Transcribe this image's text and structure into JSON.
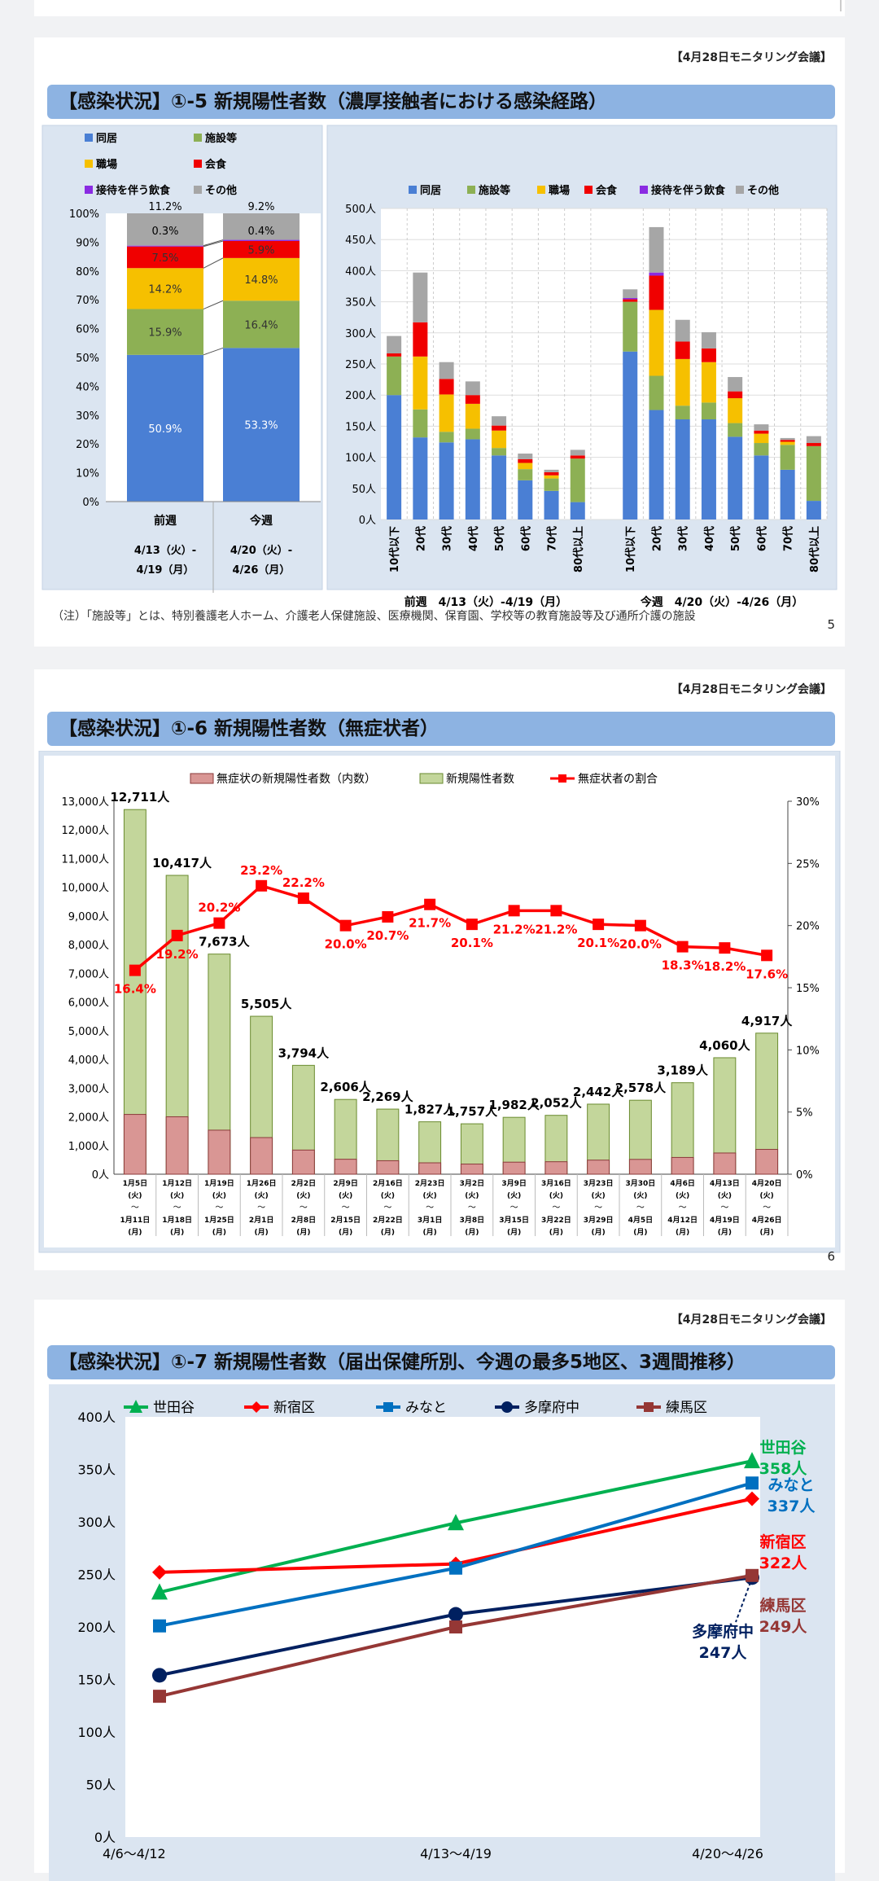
{
  "meeting_label": "【4月28日モニタリング会議】",
  "slide5": {
    "title": "【感染状況】①-5 新規陽性者数（濃厚接触者における感染経路）",
    "page": "5",
    "note": "（注）「施設等」とは、特別養護老人ホーム、介護老人保健施設、医療機関、保育園、学校等の教育施設等及び通所介護の施設",
    "colors": {
      "home": "#4a7fd4",
      "facility": "#8db054",
      "work": "#f6c000",
      "dining": "#f00000",
      "hosted": "#8a2be2",
      "other": "#a6a6a6"
    },
    "legend": [
      "同居",
      "施設等",
      "職場",
      "会食",
      "接待を伴う飲食",
      "その他"
    ],
    "chart_data": [
      {
        "type": "bar",
        "stacked": "percent",
        "categories": [
          "前週",
          "今週"
        ],
        "period_labels": [
          [
            "4/13（火）-",
            "4/19（月）"
          ],
          [
            "4/20（火）-",
            "4/26（月）"
          ]
        ],
        "ylim": [
          0,
          100
        ],
        "yticks": [
          "0%",
          "10%",
          "20%",
          "30%",
          "40%",
          "50%",
          "60%",
          "70%",
          "80%",
          "90%",
          "100%"
        ],
        "series": [
          {
            "name": "同居",
            "key": "home",
            "values": [
              50.9,
              53.3
            ],
            "labels": [
              "50.9%",
              "53.3%"
            ]
          },
          {
            "name": "施設等",
            "key": "facility",
            "values": [
              15.9,
              16.4
            ],
            "labels": [
              "15.9%",
              "16.4%"
            ]
          },
          {
            "name": "職場",
            "key": "work",
            "values": [
              14.2,
              14.8
            ],
            "labels": [
              "14.2%",
              "14.8%"
            ]
          },
          {
            "name": "会食",
            "key": "dining",
            "values": [
              7.5,
              5.9
            ],
            "labels": [
              "7.5%",
              "5.9%"
            ]
          },
          {
            "name": "接待を伴う飲食",
            "key": "hosted",
            "values": [
              0.3,
              0.4
            ],
            "labels": [
              "0.3%",
              "0.4%"
            ]
          },
          {
            "name": "その他",
            "key": "other",
            "values": [
              11.2,
              9.2
            ],
            "labels": [
              "11.2%",
              "9.2%"
            ]
          }
        ]
      },
      {
        "type": "bar",
        "stacked": "absolute",
        "ylim": [
          0,
          500
        ],
        "yticks": [
          "0人",
          "50人",
          "100人",
          "150人",
          "200人",
          "250人",
          "300人",
          "350人",
          "400人",
          "450人",
          "500人"
        ],
        "groups": [
          {
            "label": "前週　4/13（火）-4/19（月）",
            "categories": [
              "10代以下",
              "20代",
              "30代",
              "40代",
              "50代",
              "60代",
              "70代",
              "80代以上"
            ],
            "stacks": [
              [
                200,
                62,
                0,
                5,
                0,
                28
              ],
              [
                132,
                45,
                85,
                55,
                0,
                80
              ],
              [
                124,
                17,
                60,
                25,
                0,
                27
              ],
              [
                129,
                17,
                40,
                14,
                0,
                22
              ],
              [
                103,
                12,
                28,
                8,
                0,
                15
              ],
              [
                63,
                18,
                10,
                6,
                0,
                9
              ],
              [
                46,
                20,
                5,
                5,
                0,
                4
              ],
              [
                28,
                70,
                0,
                5,
                0,
                9
              ]
            ]
          },
          {
            "label": "今週　4/20（火）-4/26（月）",
            "categories": [
              "10代以下",
              "20代",
              "30代",
              "40代",
              "50代",
              "60代",
              "70代",
              "80代以上"
            ],
            "stacks": [
              [
                270,
                80,
                0,
                4,
                2,
                14
              ],
              [
                176,
                55,
                106,
                55,
                5,
                73
              ],
              [
                161,
                22,
                75,
                28,
                0,
                35
              ],
              [
                161,
                27,
                65,
                22,
                0,
                26
              ],
              [
                133,
                22,
                40,
                11,
                0,
                23
              ],
              [
                103,
                20,
                15,
                5,
                0,
                10
              ],
              [
                80,
                40,
                5,
                3,
                0,
                3
              ],
              [
                30,
                88,
                0,
                5,
                0,
                11
              ]
            ]
          }
        ]
      }
    ]
  },
  "slide6": {
    "title": "【感染状況】①-6 新規陽性者数（無症状者）",
    "page": "6",
    "chart_data": {
      "type": "bar",
      "legend": [
        "無症状の新規陽性者数（内数）",
        "新規陽性者数",
        "無症状者の割合"
      ],
      "week_start": [
        "1月5日",
        "1月12日",
        "1月19日",
        "1月26日",
        "2月2日",
        "2月9日",
        "2月16日",
        "2月23日",
        "3月2日",
        "3月9日",
        "3月16日",
        "3月23日",
        "3月30日",
        "4月6日",
        "4月13日",
        "4月20日"
      ],
      "week_end": [
        "1月11日",
        "1月18日",
        "1月25日",
        "2月1日",
        "2月8日",
        "2月15日",
        "2月22日",
        "3月1日",
        "3月8日",
        "3月15日",
        "3月22日",
        "3月29日",
        "4月5日",
        "4月12日",
        "4月19日",
        "4月26日"
      ],
      "day_tue": "(火)",
      "tilde": "〜",
      "day_mon": "(月)",
      "total": [
        12711,
        10417,
        7673,
        5505,
        3794,
        2606,
        2269,
        1827,
        1757,
        1982,
        2052,
        2442,
        2578,
        3189,
        4060,
        4917
      ],
      "total_labels": [
        "12,711人",
        "10,417人",
        "7,673人",
        "5,505人",
        "3,794人",
        "2,606人",
        "2,269人",
        "1,827人",
        "1,757人",
        "1,982人",
        "2,052人",
        "2,442人",
        "2,578人",
        "3,189人",
        "4,060人",
        "4,917人"
      ],
      "asymptomatic": [
        2084,
        2002,
        1535,
        1277,
        842,
        521,
        470,
        397,
        353,
        420,
        435,
        491,
        516,
        584,
        739,
        865
      ],
      "ratio": [
        16.4,
        19.2,
        20.2,
        23.2,
        22.2,
        20.0,
        20.7,
        21.7,
        20.1,
        21.2,
        21.2,
        20.1,
        20.0,
        18.3,
        18.2,
        17.6
      ],
      "ratio_labels": [
        "16.4%",
        "19.2%",
        "20.2%",
        "23.2%",
        "22.2%",
        "20.0%",
        "20.7%",
        "21.7%",
        "20.1%",
        "21.2%",
        "21.2%",
        "20.1%",
        "20.0%",
        "18.3%",
        "18.2%",
        "17.6%"
      ],
      "y_left_max": 13000,
      "y_left_ticks": [
        "0人",
        "1,000人",
        "2,000人",
        "3,000人",
        "4,000人",
        "5,000人",
        "6,000人",
        "7,000人",
        "8,000人",
        "9,000人",
        "10,000人",
        "11,000人",
        "12,000人",
        "13,000人"
      ],
      "y_right_max": 30,
      "y_right_ticks": [
        "0%",
        "5%",
        "10%",
        "15%",
        "20%",
        "25%",
        "30%"
      ],
      "colors": {
        "asym": "#d99694",
        "total": "#c3d69b",
        "ratio": "#ff0000"
      }
    }
  },
  "slide7": {
    "title": "【感染状況】①-7 新規陽性者数（届出保健所別、今週の最多5地区、3週間推移）",
    "chart_data": {
      "type": "line",
      "x": [
        "4/6～4/12",
        "4/13～4/19",
        "4/20～4/26"
      ],
      "ylim": [
        0,
        400
      ],
      "yticks": [
        "0人",
        "50人",
        "100人",
        "150人",
        "200人",
        "250人",
        "300人",
        "350人",
        "400人"
      ],
      "series": [
        {
          "name": "世田谷",
          "values": [
            233,
            299,
            358
          ],
          "color": "#00b050",
          "marker": "triangle",
          "end_name": "世田谷",
          "end_value": "358人"
        },
        {
          "name": "新宿区",
          "values": [
            252,
            260,
            322
          ],
          "color": "#ff0000",
          "marker": "diamond",
          "end_name": "新宿区",
          "end_value": "322人"
        },
        {
          "name": "みなと",
          "values": [
            201,
            256,
            337
          ],
          "color": "#0070c0",
          "marker": "square",
          "end_name": "みなと",
          "end_value": "337人"
        },
        {
          "name": "多摩府中",
          "values": [
            154,
            212,
            247
          ],
          "color": "#002060",
          "marker": "circle",
          "end_name": "多摩府中",
          "end_value": "247人"
        },
        {
          "name": "練馬区",
          "values": [
            134,
            200,
            249
          ],
          "color": "#953735",
          "marker": "square",
          "end_name": "練馬区",
          "end_value": "249人"
        }
      ]
    }
  }
}
